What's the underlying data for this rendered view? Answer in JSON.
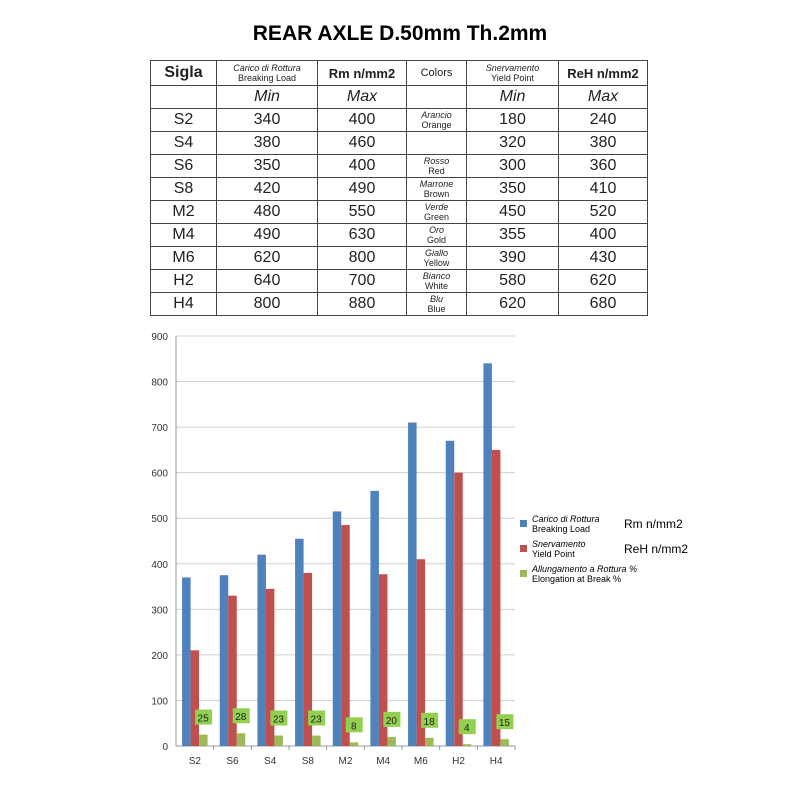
{
  "title": "REAR AXLE D.50mm  Th.2mm",
  "table": {
    "headers": {
      "sigla": "Sigla",
      "breaking_it": "Carico di Rottura",
      "breaking_en": "Breaking Load",
      "rm": "Rm n/mm2",
      "colors": "Colors",
      "yield_it": "Snervamento",
      "yield_en": "Yield Point",
      "reh": "ReH n/mm2"
    },
    "sub": {
      "min": "Min",
      "max": "Max"
    },
    "rows": [
      {
        "sigla": "S2",
        "rm_min": "340",
        "rm_max": "400",
        "color_it": "Arancio",
        "color_en": "Orange",
        "reh_min": "180",
        "reh_max": "240"
      },
      {
        "sigla": "S4",
        "rm_min": "380",
        "rm_max": "460",
        "color_it": "",
        "color_en": "",
        "reh_min": "320",
        "reh_max": "380"
      },
      {
        "sigla": "S6",
        "rm_min": "350",
        "rm_max": "400",
        "color_it": "Rosso",
        "color_en": "Red",
        "reh_min": "300",
        "reh_max": "360"
      },
      {
        "sigla": "S8",
        "rm_min": "420",
        "rm_max": "490",
        "color_it": "Marrone",
        "color_en": "Brown",
        "reh_min": "350",
        "reh_max": "410"
      },
      {
        "sigla": "M2",
        "rm_min": "480",
        "rm_max": "550",
        "color_it": "Verde",
        "color_en": "Green",
        "reh_min": "450",
        "reh_max": "520"
      },
      {
        "sigla": "M4",
        "rm_min": "490",
        "rm_max": "630",
        "color_it": "Oro",
        "color_en": "Gold",
        "reh_min": "355",
        "reh_max": "400"
      },
      {
        "sigla": "M6",
        "rm_min": "620",
        "rm_max": "800",
        "color_it": "Giallo",
        "color_en": "Yellow",
        "reh_min": "390",
        "reh_max": "430"
      },
      {
        "sigla": "H2",
        "rm_min": "640",
        "rm_max": "700",
        "color_it": "Bianco",
        "color_en": "White",
        "reh_min": "580",
        "reh_max": "620"
      },
      {
        "sigla": "H4",
        "rm_min": "800",
        "rm_max": "880",
        "color_it": "Blu",
        "color_en": "Blue",
        "reh_min": "620",
        "reh_max": "680"
      }
    ]
  },
  "chart_data": {
    "type": "bar",
    "categories": [
      "S2",
      "S6",
      "S4",
      "S8",
      "M2",
      "M4",
      "M6",
      "H2",
      "H4"
    ],
    "ylim": [
      0,
      900
    ],
    "yticks": [
      0,
      100,
      200,
      300,
      400,
      500,
      600,
      700,
      800,
      900
    ],
    "grid": true,
    "legend_position": "right",
    "series": [
      {
        "name_it": "Carico di Rottura",
        "name_en": "Breaking Load",
        "unit": "Rm n/mm2",
        "color": "#4f81bd",
        "values": [
          370,
          375,
          420,
          455,
          515,
          560,
          710,
          670,
          840
        ]
      },
      {
        "name_it": "Snervamento",
        "name_en": "Yield Point",
        "unit": "ReH n/mm2",
        "color": "#c0504d",
        "values": [
          210,
          330,
          345,
          380,
          485,
          377,
          410,
          600,
          650
        ]
      },
      {
        "name_it": "Allungamento a Rottura  %",
        "name_en": "Elongation at Break  %",
        "unit": "",
        "color": "#9bbb59",
        "values": [
          25,
          28,
          23,
          23,
          8,
          20,
          18,
          4,
          15
        ]
      }
    ]
  }
}
